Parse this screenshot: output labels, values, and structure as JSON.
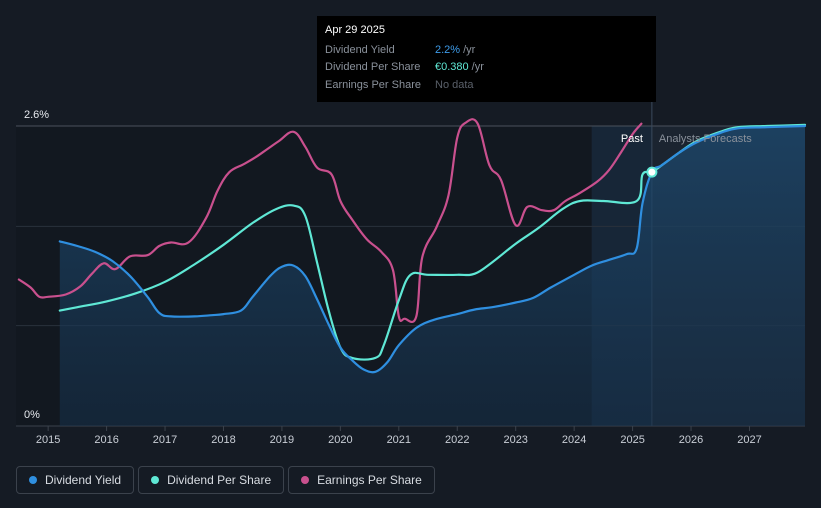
{
  "tooltip": {
    "date": "Apr 29 2025",
    "rows": [
      {
        "label": "Dividend Yield",
        "value": "2.2%",
        "unit": "/yr"
      },
      {
        "label": "Dividend Per Share",
        "value": "€0.380",
        "unit": "/yr"
      },
      {
        "label": "Earnings Per Share",
        "value": "No data",
        "unit": ""
      }
    ]
  },
  "legend": [
    {
      "label": "Dividend Yield",
      "color": "#2f8fe0"
    },
    {
      "label": "Dividend Per Share",
      "color": "#5fe8d5"
    },
    {
      "label": "Earnings Per Share",
      "color": "#c9508e"
    }
  ],
  "chart_data": {
    "type": "line",
    "ylabels": [
      "2.6%",
      "0%"
    ],
    "ylim": [
      0,
      2.6
    ],
    "xlim": [
      2014.45,
      2027.95
    ],
    "x_ticks": [
      "2015",
      "2016",
      "2017",
      "2018",
      "2019",
      "2020",
      "2021",
      "2022",
      "2023",
      "2024",
      "2025",
      "2026",
      "2027"
    ],
    "region_labels": {
      "past": "Past",
      "forecast": "Analysts Forecasts"
    },
    "forecast_start": 2025.33,
    "forecast_shade_start": 2024.3,
    "grid": true,
    "series": [
      {
        "name": "Dividend Yield",
        "color": "#2f8fe0",
        "points": [
          [
            2015.2,
            1.6
          ],
          [
            2015.5,
            1.56
          ],
          [
            2015.8,
            1.51
          ],
          [
            2016.1,
            1.43
          ],
          [
            2016.4,
            1.3
          ],
          [
            2016.7,
            1.12
          ],
          [
            2016.9,
            0.98
          ],
          [
            2017.1,
            0.95
          ],
          [
            2017.5,
            0.95
          ],
          [
            2017.8,
            0.96
          ],
          [
            2018.0,
            0.97
          ],
          [
            2018.3,
            1.0
          ],
          [
            2018.5,
            1.12
          ],
          [
            2018.8,
            1.3
          ],
          [
            2019.0,
            1.38
          ],
          [
            2019.2,
            1.39
          ],
          [
            2019.4,
            1.3
          ],
          [
            2019.6,
            1.1
          ],
          [
            2019.8,
            0.88
          ],
          [
            2020.0,
            0.68
          ],
          [
            2020.2,
            0.57
          ],
          [
            2020.4,
            0.49
          ],
          [
            2020.6,
            0.47
          ],
          [
            2020.8,
            0.55
          ],
          [
            2021.0,
            0.7
          ],
          [
            2021.3,
            0.85
          ],
          [
            2021.6,
            0.92
          ],
          [
            2022.0,
            0.97
          ],
          [
            2022.3,
            1.01
          ],
          [
            2022.6,
            1.03
          ],
          [
            2023.0,
            1.07
          ],
          [
            2023.3,
            1.11
          ],
          [
            2023.6,
            1.2
          ],
          [
            2024.0,
            1.31
          ],
          [
            2024.3,
            1.39
          ],
          [
            2024.6,
            1.44
          ],
          [
            2024.9,
            1.49
          ],
          [
            2025.07,
            1.54
          ],
          [
            2025.17,
            1.93
          ],
          [
            2025.33,
            2.2
          ],
          [
            2025.5,
            2.26
          ],
          [
            2025.8,
            2.37
          ],
          [
            2026.1,
            2.46
          ],
          [
            2026.5,
            2.54
          ],
          [
            2026.8,
            2.58
          ],
          [
            2027.3,
            2.59
          ],
          [
            2027.95,
            2.6
          ]
        ]
      },
      {
        "name": "Dividend Per Share",
        "color": "#5fe8d5",
        "points": [
          [
            2015.2,
            1.0
          ],
          [
            2015.5,
            1.03
          ],
          [
            2016.0,
            1.08
          ],
          [
            2016.5,
            1.15
          ],
          [
            2017.0,
            1.25
          ],
          [
            2017.5,
            1.4
          ],
          [
            2018.0,
            1.57
          ],
          [
            2018.5,
            1.76
          ],
          [
            2018.9,
            1.88
          ],
          [
            2019.2,
            1.91
          ],
          [
            2019.4,
            1.82
          ],
          [
            2019.6,
            1.42
          ],
          [
            2019.8,
            1.0
          ],
          [
            2020.0,
            0.68
          ],
          [
            2020.2,
            0.59
          ],
          [
            2020.6,
            0.59
          ],
          [
            2020.75,
            0.71
          ],
          [
            2021.0,
            1.09
          ],
          [
            2021.2,
            1.31
          ],
          [
            2021.5,
            1.31
          ],
          [
            2022.0,
            1.31
          ],
          [
            2022.3,
            1.32
          ],
          [
            2022.6,
            1.42
          ],
          [
            2023.0,
            1.58
          ],
          [
            2023.4,
            1.72
          ],
          [
            2023.8,
            1.88
          ],
          [
            2024.1,
            1.95
          ],
          [
            2024.5,
            1.95
          ],
          [
            2025.07,
            1.95
          ],
          [
            2025.17,
            2.18
          ],
          [
            2025.33,
            2.2
          ],
          [
            2025.5,
            2.26
          ],
          [
            2025.8,
            2.37
          ],
          [
            2026.1,
            2.47
          ],
          [
            2026.5,
            2.55
          ],
          [
            2026.8,
            2.59
          ],
          [
            2027.3,
            2.6
          ],
          [
            2027.95,
            2.61
          ]
        ]
      },
      {
        "name": "Earnings Per Share",
        "color": "#c9508e",
        "points": [
          [
            2014.5,
            1.27
          ],
          [
            2014.7,
            1.2
          ],
          [
            2014.85,
            1.12
          ],
          [
            2015.0,
            1.12
          ],
          [
            2015.3,
            1.14
          ],
          [
            2015.55,
            1.21
          ],
          [
            2015.75,
            1.32
          ],
          [
            2015.95,
            1.41
          ],
          [
            2016.15,
            1.36
          ],
          [
            2016.4,
            1.47
          ],
          [
            2016.7,
            1.48
          ],
          [
            2016.9,
            1.56
          ],
          [
            2017.1,
            1.59
          ],
          [
            2017.4,
            1.59
          ],
          [
            2017.7,
            1.8
          ],
          [
            2017.9,
            2.04
          ],
          [
            2018.1,
            2.2
          ],
          [
            2018.35,
            2.27
          ],
          [
            2018.55,
            2.33
          ],
          [
            2018.75,
            2.4
          ],
          [
            2018.95,
            2.47
          ],
          [
            2019.2,
            2.55
          ],
          [
            2019.4,
            2.42
          ],
          [
            2019.6,
            2.24
          ],
          [
            2019.85,
            2.18
          ],
          [
            2020.0,
            1.95
          ],
          [
            2020.2,
            1.79
          ],
          [
            2020.45,
            1.62
          ],
          [
            2020.7,
            1.51
          ],
          [
            2020.9,
            1.35
          ],
          [
            2021.0,
            0.95
          ],
          [
            2021.1,
            0.93
          ],
          [
            2021.3,
            0.95
          ],
          [
            2021.4,
            1.46
          ],
          [
            2021.65,
            1.73
          ],
          [
            2021.85,
            2.0
          ],
          [
            2022.0,
            2.5
          ],
          [
            2022.15,
            2.63
          ],
          [
            2022.35,
            2.62
          ],
          [
            2022.55,
            2.26
          ],
          [
            2022.75,
            2.13
          ],
          [
            2023.0,
            1.74
          ],
          [
            2023.2,
            1.9
          ],
          [
            2023.45,
            1.87
          ],
          [
            2023.65,
            1.87
          ],
          [
            2023.85,
            1.95
          ],
          [
            2024.1,
            2.02
          ],
          [
            2024.4,
            2.12
          ],
          [
            2024.6,
            2.22
          ],
          [
            2024.8,
            2.37
          ],
          [
            2025.0,
            2.53
          ],
          [
            2025.15,
            2.62
          ]
        ]
      }
    ]
  }
}
